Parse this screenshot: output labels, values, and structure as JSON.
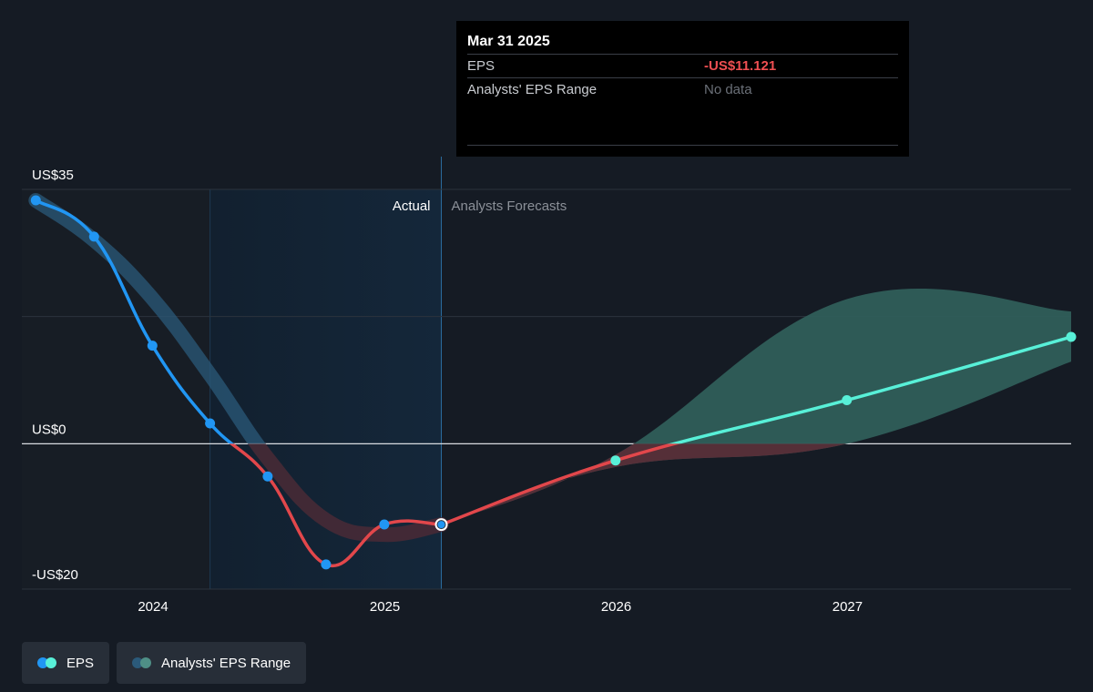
{
  "tooltip": {
    "date": "Mar 31 2025",
    "rows": [
      {
        "label": "EPS",
        "value": "-US$11.121"
      },
      {
        "label": "Analysts' EPS Range",
        "value": "No data"
      }
    ]
  },
  "legend": [
    {
      "label": "EPS",
      "icon": "eps-legend-dots",
      "colors": [
        "#2196f3",
        "#58f0d8"
      ]
    },
    {
      "label": "Analysts' EPS Range",
      "icon": "range-legend-dots",
      "colors": [
        "#2b5a7a",
        "#4f8f86"
      ]
    }
  ],
  "colors": {
    "background": "#151b24",
    "eps_actual_positive": "#2196f3",
    "eps_actual_negative": "#e2474b",
    "eps_forecast": "#58f0d8",
    "range_fill": "#2f5e5a",
    "past_range_band": "#2b5a7a",
    "actual_highlight": "#14273a"
  },
  "chart_data": {
    "type": "line",
    "title": "",
    "xlabel": "",
    "ylabel": "",
    "x_ticks": [
      "2024",
      "2025",
      "2026",
      "2027"
    ],
    "y_ticks": [
      "US$35",
      "US$0",
      "-US$20"
    ],
    "y_tick_values": [
      35,
      0,
      -20
    ],
    "ylim": [
      -20,
      35
    ],
    "xlim": [
      "2023-06-08",
      "2027-12-20"
    ],
    "zero_line": true,
    "divider_date": "2025-03-31",
    "highlight_start": "2024-03-31",
    "region_labels": {
      "actual": "Actual",
      "forecast": "Analysts Forecasts"
    },
    "series": [
      {
        "name": "EPS",
        "kind": "actual",
        "points": [
          {
            "x": "2023-06-30",
            "y": 33.5
          },
          {
            "x": "2023-09-30",
            "y": 28.5
          },
          {
            "x": "2023-12-31",
            "y": 13.5
          },
          {
            "x": "2024-03-31",
            "y": 2.8
          },
          {
            "x": "2024-06-30",
            "y": -4.5
          },
          {
            "x": "2024-09-30",
            "y": -16.6
          },
          {
            "x": "2024-12-31",
            "y": -11.1
          },
          {
            "x": "2025-03-31",
            "y": -11.121
          }
        ]
      },
      {
        "name": "EPS",
        "kind": "forecast",
        "points": [
          {
            "x": "2025-03-31",
            "y": -11.121
          },
          {
            "x": "2025-12-31",
            "y": -2.3
          },
          {
            "x": "2026-12-31",
            "y": 6.0
          },
          {
            "x": "2027-12-20",
            "y": 14.7
          }
        ]
      },
      {
        "name": "Analysts' EPS Range",
        "kind": "range",
        "points": [
          {
            "x": "2025-03-31",
            "low": -11.121,
            "high": -11.121
          },
          {
            "x": "2025-12-31",
            "low": -3.2,
            "high": -1.5
          },
          {
            "x": "2026-12-31",
            "low": 0.0,
            "high": 19.9
          },
          {
            "x": "2027-12-20",
            "low": 11.3,
            "high": 18.2
          }
        ]
      },
      {
        "name": "Analysts' EPS Range",
        "kind": "past_range",
        "points": [
          {
            "x": "2023-06-30",
            "y": 33.5
          },
          {
            "x": "2023-09-30",
            "y": 28.0
          },
          {
            "x": "2023-12-31",
            "y": 20.0
          },
          {
            "x": "2024-03-31",
            "y": 9.5
          },
          {
            "x": "2024-06-30",
            "y": -2.0
          },
          {
            "x": "2024-09-30",
            "y": -10.5
          },
          {
            "x": "2024-12-31",
            "y": -12.5
          },
          {
            "x": "2025-03-31",
            "y": -11.121
          }
        ]
      }
    ]
  }
}
